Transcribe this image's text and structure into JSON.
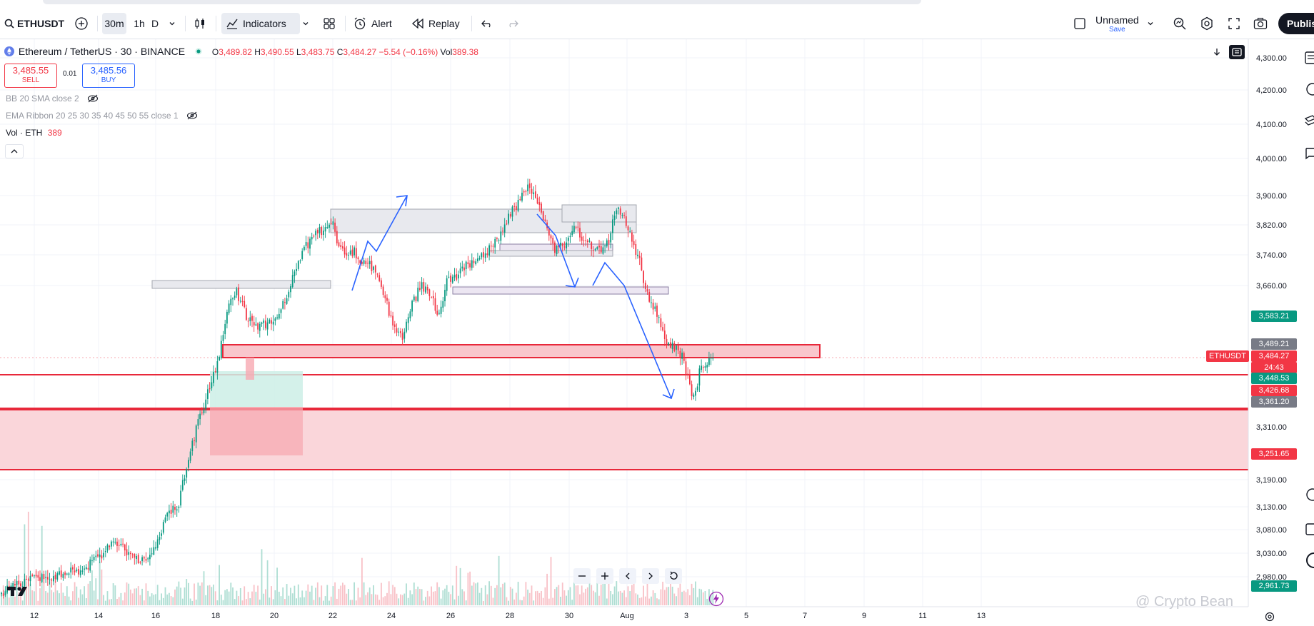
{
  "toolbar": {
    "symbol": "ETHUSDT",
    "intervals": [
      "30m",
      "1h",
      "D"
    ],
    "selected_interval": "30m",
    "indicators_label": "Indicators",
    "alert_label": "Alert",
    "replay_label": "Replay",
    "layout_name": "Unnamed",
    "layout_save": "Save",
    "publish_label": "Publis"
  },
  "legend": {
    "pair": "Ethereum / TetherUS · 30 · BINANCE",
    "o_label": "O",
    "o": "3,489.82",
    "h_label": "H",
    "h": "3,490.55",
    "l_label": "L",
    "l": "3,483.75",
    "c_label": "C",
    "c": "3,484.27",
    "change": "−5.54 (−0.16%)",
    "vol_label": "Vol",
    "vol": "389.38"
  },
  "trade": {
    "sell_price": "3,485.55",
    "sell_label": "SELL",
    "spread": "0.01",
    "buy_price": "3,485.56",
    "buy_label": "BUY"
  },
  "indicators": [
    {
      "text": "BB 20 SMA close 2"
    },
    {
      "text": "EMA Ribbon 20 25 30 35 40 45 50 55 close 1"
    }
  ],
  "volume_indicator": {
    "label": "Vol · ETH",
    "value": "389"
  },
  "price_axis": {
    "ticks": [
      "4,300.00",
      "4,200.00",
      "4,100.00",
      "4,000.00",
      "3,900.00",
      "3,820.00",
      "3,740.00",
      "3,660.00",
      "3,310.00",
      "3,190.00",
      "3,130.00",
      "3,080.00",
      "3,030.00",
      "2,980.00"
    ]
  },
  "price_tags": [
    {
      "value": "3,583.21",
      "color": "#089981"
    },
    {
      "value": "3,489.21",
      "color": "#787b86"
    },
    {
      "value": "3,484.27",
      "color": "#f23645"
    },
    {
      "value": "24:43",
      "color": "#f23645"
    },
    {
      "value": "3,448.53",
      "color": "#089981"
    },
    {
      "value": "3,426.68",
      "color": "#f23645"
    },
    {
      "value": "3,361.20",
      "color": "#787b86"
    },
    {
      "value": "3,251.65",
      "color": "#f23645"
    },
    {
      "value": "2,961.73",
      "color": "#089981"
    }
  ],
  "symbol_tag": "ETHUSDT",
  "time_axis": {
    "labels": [
      "12",
      "14",
      "16",
      "18",
      "20",
      "22",
      "24",
      "26",
      "28",
      "30",
      "Aug",
      "3",
      "5",
      "7",
      "9",
      "11",
      "13"
    ]
  },
  "watermark": "@ Crypto Bean",
  "colors": {
    "up": "#089981",
    "down": "#f23645",
    "accent": "#2962ff",
    "zone_red": "#f7a9b1",
    "zone_gray": "#d1d4dc"
  }
}
